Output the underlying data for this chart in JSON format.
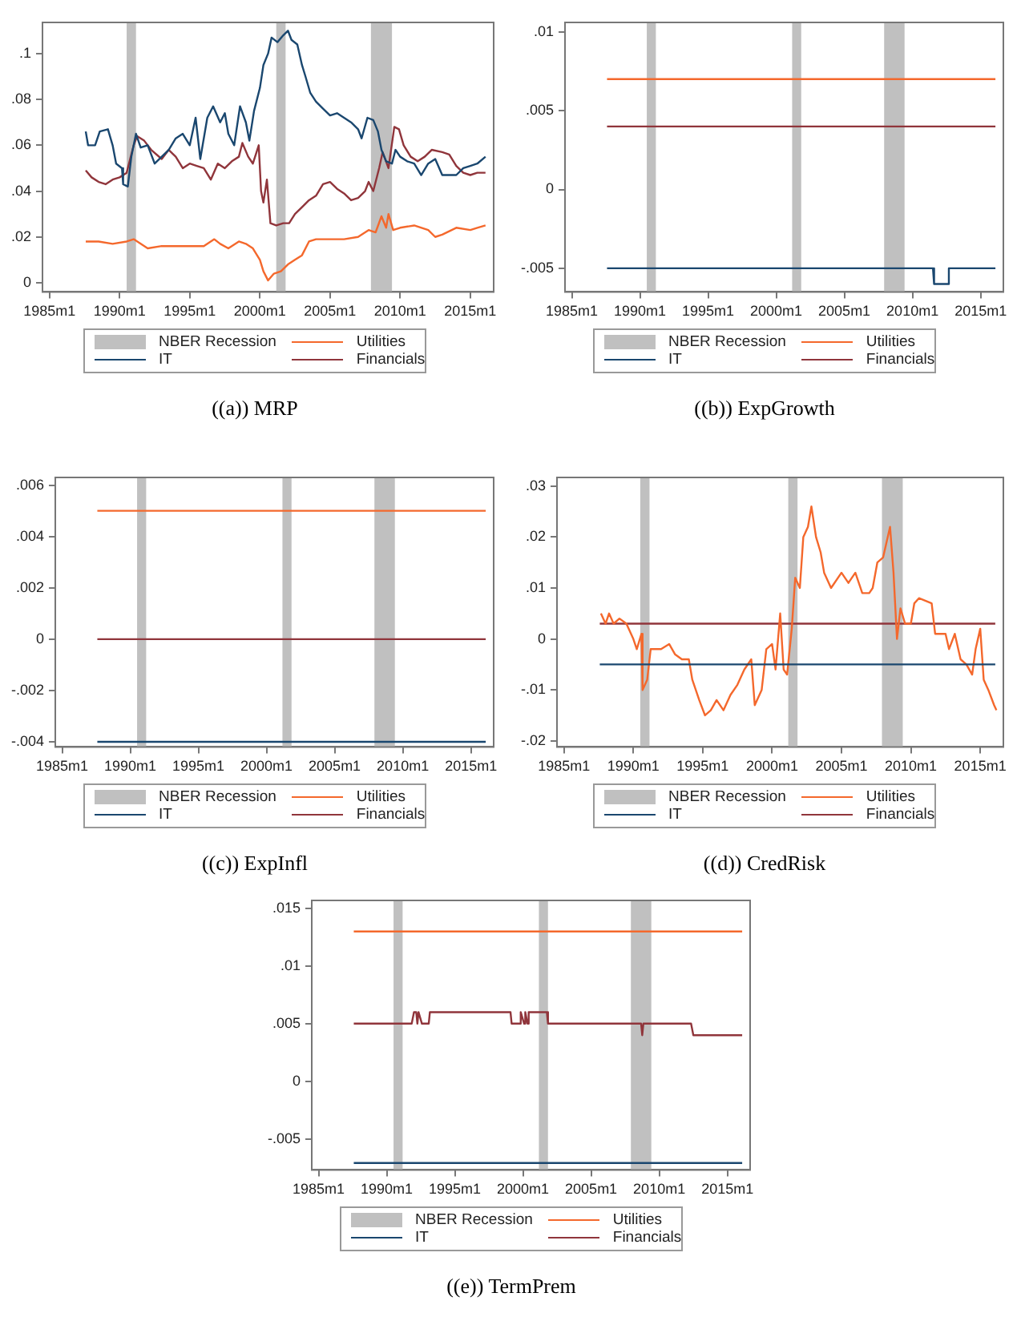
{
  "chart_data": [
    {
      "type": "line",
      "title": "((a)) MRP",
      "legend": "bottom",
      "grid": false,
      "marker": "none",
      "xlim": [
        "1984-07",
        "2016-09"
      ],
      "xticks": [
        {
          "value": "1985-01",
          "label": "1985m1"
        },
        {
          "value": "1990-01",
          "label": "1990m1"
        },
        {
          "value": "1995-01",
          "label": "1995m1"
        },
        {
          "value": "2000-01",
          "label": "2000m1"
        },
        {
          "value": "2005-01",
          "label": "2005m1"
        },
        {
          "value": "2010-01",
          "label": "2010m1"
        },
        {
          "value": "2015-01",
          "label": "2015m1"
        }
      ],
      "ylim": [
        -0.004,
        0.1136
      ],
      "yticks": [
        {
          "value": 0,
          "label": "0"
        },
        {
          "value": 0.02,
          "label": ".02"
        },
        {
          "value": 0.04,
          "label": ".04"
        },
        {
          "value": 0.06,
          "label": ".06"
        },
        {
          "value": 0.08,
          "label": ".08"
        },
        {
          "value": 0.1,
          "label": ".1"
        }
      ],
      "bands": [
        {
          "axis": "x",
          "from": "1990-07",
          "to": "1991-03",
          "label": "NBER Recession",
          "color": "#c0c0c0"
        },
        {
          "axis": "x",
          "from": "2001-03",
          "to": "2001-11",
          "color": "#c0c0c0"
        },
        {
          "axis": "x",
          "from": "2007-12",
          "to": "2009-06",
          "color": "#c0c0c0"
        }
      ],
      "series": [
        {
          "name": "IT",
          "color": "#1a476f",
          "x": [
            "1987-08",
            "1987-10",
            "1988-04",
            "1988-08",
            "1989-03",
            "1989-07",
            "1989-10",
            "1990-03",
            "1990-04",
            "1990-08",
            "1990-11",
            "1991-03",
            "1991-07",
            "1992-01",
            "1992-07",
            "1993-01",
            "1993-07",
            "1994-01",
            "1994-07",
            "1995-01",
            "1995-06",
            "1995-10",
            "1996-04",
            "1996-09",
            "1997-03",
            "1997-07",
            "1997-10",
            "1998-03",
            "1998-08",
            "1999-01",
            "1999-04",
            "1999-08",
            "2000-01",
            "2000-04",
            "2000-08",
            "2000-11",
            "2001-04",
            "2001-09",
            "2002-01",
            "2002-04",
            "2002-09",
            "2003-01",
            "2003-04",
            "2003-08",
            "2004-01",
            "2004-07",
            "2005-01",
            "2005-07",
            "2006-01",
            "2006-07",
            "2007-01",
            "2007-04",
            "2007-09",
            "2008-02",
            "2008-06",
            "2008-09",
            "2009-01",
            "2009-06",
            "2009-09",
            "2010-01",
            "2010-07",
            "2011-01",
            "2011-07",
            "2012-01",
            "2012-07",
            "2013-01",
            "2013-07",
            "2014-01",
            "2014-07",
            "2015-01",
            "2015-07",
            "2016-02"
          ],
          "values": [
            0.066,
            0.06,
            0.06,
            0.066,
            0.067,
            0.06,
            0.052,
            0.05,
            0.043,
            0.042,
            0.055,
            0.065,
            0.059,
            0.06,
            0.052,
            0.055,
            0.058,
            0.063,
            0.065,
            0.06,
            0.072,
            0.054,
            0.072,
            0.077,
            0.07,
            0.074,
            0.065,
            0.06,
            0.077,
            0.07,
            0.062,
            0.075,
            0.085,
            0.095,
            0.1,
            0.107,
            0.105,
            0.108,
            0.11,
            0.106,
            0.104,
            0.095,
            0.09,
            0.083,
            0.079,
            0.076,
            0.073,
            0.074,
            0.072,
            0.07,
            0.067,
            0.063,
            0.072,
            0.071,
            0.066,
            0.058,
            0.053,
            0.052,
            0.058,
            0.055,
            0.053,
            0.052,
            0.047,
            0.052,
            0.054,
            0.047,
            0.047,
            0.047,
            0.05,
            0.051,
            0.052,
            0.055
          ]
        },
        {
          "name": "Utilities",
          "color": "#f4682c",
          "x": [
            "1987-08",
            "1988-07",
            "1989-07",
            "1990-07",
            "1991-01",
            "1991-07",
            "1992-01",
            "1993-01",
            "1994-01",
            "1995-01",
            "1996-01",
            "1996-10",
            "1997-03",
            "1997-10",
            "1998-07",
            "1999-01",
            "1999-07",
            "2000-01",
            "2000-04",
            "2000-08",
            "2001-01",
            "2001-07",
            "2002-01",
            "2002-07",
            "2003-01",
            "2003-07",
            "2004-01",
            "2005-01",
            "2006-01",
            "2007-01",
            "2007-10",
            "2008-04",
            "2008-09",
            "2009-01",
            "2009-03",
            "2009-07",
            "2010-01",
            "2011-01",
            "2012-01",
            "2012-07",
            "2013-01",
            "2014-01",
            "2015-01",
            "2015-07",
            "2016-02"
          ],
          "values": [
            0.018,
            0.018,
            0.017,
            0.018,
            0.019,
            0.017,
            0.015,
            0.016,
            0.016,
            0.016,
            0.016,
            0.019,
            0.017,
            0.015,
            0.018,
            0.017,
            0.015,
            0.01,
            0.005,
            0.001,
            0.004,
            0.005,
            0.008,
            0.01,
            0.012,
            0.018,
            0.019,
            0.019,
            0.019,
            0.02,
            0.023,
            0.022,
            0.029,
            0.024,
            0.03,
            0.023,
            0.024,
            0.025,
            0.023,
            0.02,
            0.021,
            0.024,
            0.023,
            0.024,
            0.025
          ]
        },
        {
          "name": "Financials",
          "color": "#90353b",
          "x": [
            "1987-08",
            "1988-01",
            "1988-07",
            "1989-01",
            "1989-07",
            "1990-01",
            "1990-07",
            "1991-01",
            "1991-04",
            "1991-10",
            "1992-04",
            "1993-01",
            "1993-07",
            "1994-01",
            "1994-07",
            "1995-01",
            "1995-07",
            "1996-01",
            "1996-07",
            "1997-01",
            "1997-07",
            "1998-01",
            "1998-07",
            "1998-10",
            "1999-03",
            "1999-07",
            "1999-12",
            "2000-02",
            "2000-04",
            "2000-07",
            "2000-10",
            "2001-03",
            "2001-09",
            "2002-02",
            "2002-07",
            "2003-01",
            "2003-07",
            "2004-01",
            "2004-07",
            "2005-01",
            "2005-07",
            "2006-01",
            "2006-07",
            "2007-01",
            "2007-07",
            "2007-10",
            "2008-02",
            "2008-07",
            "2008-10",
            "2009-03",
            "2009-08",
            "2009-12",
            "2010-04",
            "2010-10",
            "2011-04",
            "2011-10",
            "2012-04",
            "2013-01",
            "2013-07",
            "2014-01",
            "2014-07",
            "2015-01",
            "2015-07",
            "2016-02"
          ],
          "values": [
            0.049,
            0.046,
            0.044,
            0.043,
            0.045,
            0.046,
            0.048,
            0.06,
            0.064,
            0.062,
            0.058,
            0.054,
            0.058,
            0.055,
            0.05,
            0.052,
            0.051,
            0.05,
            0.045,
            0.052,
            0.05,
            0.053,
            0.055,
            0.061,
            0.055,
            0.052,
            0.06,
            0.04,
            0.035,
            0.045,
            0.026,
            0.025,
            0.026,
            0.026,
            0.03,
            0.033,
            0.036,
            0.038,
            0.043,
            0.044,
            0.041,
            0.039,
            0.036,
            0.037,
            0.04,
            0.044,
            0.04,
            0.05,
            0.057,
            0.05,
            0.068,
            0.067,
            0.06,
            0.055,
            0.053,
            0.055,
            0.058,
            0.057,
            0.056,
            0.051,
            0.048,
            0.047,
            0.048,
            0.048
          ]
        }
      ]
    },
    {
      "type": "line",
      "title": "((b)) ExpGrowth",
      "legend": "bottom",
      "grid": false,
      "marker": "none",
      "xlim": [
        "1984-07",
        "2016-09"
      ],
      "xticks": [
        {
          "value": "1985-01",
          "label": "1985m1"
        },
        {
          "value": "1990-01",
          "label": "1990m1"
        },
        {
          "value": "1995-01",
          "label": "1995m1"
        },
        {
          "value": "2000-01",
          "label": "2000m1"
        },
        {
          "value": "2005-01",
          "label": "2005m1"
        },
        {
          "value": "2010-01",
          "label": "2010m1"
        },
        {
          "value": "2015-01",
          "label": "2015m1"
        }
      ],
      "ylim": [
        -0.0065,
        0.0106
      ],
      "yticks": [
        {
          "value": -0.005,
          "label": "-.005"
        },
        {
          "value": 0,
          "label": "0"
        },
        {
          "value": 0.005,
          "label": ".005"
        },
        {
          "value": 0.01,
          "label": ".01"
        }
      ],
      "bands": [
        {
          "axis": "x",
          "from": "1990-07",
          "to": "1991-03",
          "label": "NBER Recession",
          "color": "#c0c0c0"
        },
        {
          "axis": "x",
          "from": "2001-03",
          "to": "2001-11",
          "color": "#c0c0c0"
        },
        {
          "axis": "x",
          "from": "2007-12",
          "to": "2009-06",
          "color": "#c0c0c0"
        }
      ],
      "series": [
        {
          "name": "IT",
          "color": "#1a476f",
          "x": [
            "1987-08",
            "2011-07",
            "2011-08",
            "2012-08",
            "2012-09",
            "2016-02"
          ],
          "values": [
            -0.005,
            -0.005,
            -0.006,
            -0.006,
            -0.005,
            -0.005
          ]
        },
        {
          "name": "Utilities",
          "color": "#f4682c",
          "x": [
            "1987-08",
            "2016-02"
          ],
          "values": [
            0.007,
            0.007
          ]
        },
        {
          "name": "Financials",
          "color": "#90353b",
          "x": [
            "1987-08",
            "2016-02"
          ],
          "values": [
            0.004,
            0.004
          ]
        }
      ]
    },
    {
      "type": "line",
      "title": "((c)) ExpInfl",
      "legend": "bottom",
      "grid": false,
      "marker": "none",
      "xlim": [
        "1984-07",
        "2016-09"
      ],
      "xticks": [
        {
          "value": "1985-01",
          "label": "1985m1"
        },
        {
          "value": "1990-01",
          "label": "1990m1"
        },
        {
          "value": "1995-01",
          "label": "1995m1"
        },
        {
          "value": "2000-01",
          "label": "2000m1"
        },
        {
          "value": "2005-01",
          "label": "2005m1"
        },
        {
          "value": "2010-01",
          "label": "2010m1"
        },
        {
          "value": "2015-01",
          "label": "2015m1"
        }
      ],
      "ylim": [
        -0.0042,
        0.0063
      ],
      "yticks": [
        {
          "value": -0.004,
          "label": "-.004"
        },
        {
          "value": -0.002,
          "label": "-.002"
        },
        {
          "value": 0,
          "label": "0"
        },
        {
          "value": 0.002,
          "label": ".002"
        },
        {
          "value": 0.004,
          "label": ".004"
        },
        {
          "value": 0.006,
          "label": ".006"
        }
      ],
      "bands": [
        {
          "axis": "x",
          "from": "1990-07",
          "to": "1991-03",
          "label": "NBER Recession",
          "color": "#c0c0c0"
        },
        {
          "axis": "x",
          "from": "2001-03",
          "to": "2001-11",
          "color": "#c0c0c0"
        },
        {
          "axis": "x",
          "from": "2007-12",
          "to": "2009-06",
          "color": "#c0c0c0"
        }
      ],
      "series": [
        {
          "name": "IT",
          "color": "#1a476f",
          "x": [
            "1987-08",
            "2016-02"
          ],
          "values": [
            -0.004,
            -0.004
          ]
        },
        {
          "name": "Utilities",
          "color": "#f4682c",
          "x": [
            "1987-08",
            "2016-02"
          ],
          "values": [
            0.005,
            0.005
          ]
        },
        {
          "name": "Financials",
          "color": "#90353b",
          "x": [
            "1987-08",
            "2016-02"
          ],
          "values": [
            0,
            0
          ]
        }
      ]
    },
    {
      "type": "line",
      "title": "((d)) CredRisk",
      "legend": "bottom",
      "grid": false,
      "marker": "none",
      "xlim": [
        "1984-07",
        "2016-09"
      ],
      "xticks": [
        {
          "value": "1985-01",
          "label": "1985m1"
        },
        {
          "value": "1990-01",
          "label": "1990m1"
        },
        {
          "value": "1995-01",
          "label": "1995m1"
        },
        {
          "value": "2000-01",
          "label": "2000m1"
        },
        {
          "value": "2005-01",
          "label": "2005m1"
        },
        {
          "value": "2010-01",
          "label": "2010m1"
        },
        {
          "value": "2015-01",
          "label": "2015m1"
        }
      ],
      "ylim": [
        -0.0212,
        0.0317
      ],
      "yticks": [
        {
          "value": -0.02,
          "label": "-.02"
        },
        {
          "value": -0.01,
          "label": "-.01"
        },
        {
          "value": 0,
          "label": "0"
        },
        {
          "value": 0.01,
          "label": ".01"
        },
        {
          "value": 0.02,
          "label": ".02"
        },
        {
          "value": 0.03,
          "label": ".03"
        }
      ],
      "bands": [
        {
          "axis": "x",
          "from": "1990-07",
          "to": "1991-03",
          "label": "NBER Recession",
          "color": "#c0c0c0"
        },
        {
          "axis": "x",
          "from": "2001-03",
          "to": "2001-11",
          "color": "#c0c0c0"
        },
        {
          "axis": "x",
          "from": "2007-12",
          "to": "2009-06",
          "color": "#c0c0c0"
        }
      ],
      "series": [
        {
          "name": "IT",
          "color": "#1a476f",
          "x": [
            "1987-08",
            "2016-02"
          ],
          "values": [
            -0.005,
            -0.005
          ]
        },
        {
          "name": "Utilities",
          "color": "#f4682c",
          "x": [
            "1987-09",
            "1988-01",
            "1988-04",
            "1988-08",
            "1989-01",
            "1989-07",
            "1990-01",
            "1990-04",
            "1990-08",
            "1990-09",
            "1991-01",
            "1991-04",
            "1992-01",
            "1992-08",
            "1993-01",
            "1993-07",
            "1994-01",
            "1994-04",
            "1994-10",
            "1995-03",
            "1995-08",
            "1996-01",
            "1996-07",
            "1997-01",
            "1997-07",
            "1998-01",
            "1998-07",
            "1998-10",
            "1999-04",
            "1999-08",
            "2000-01",
            "2000-04",
            "2000-08",
            "2000-11",
            "2001-02",
            "2001-06",
            "2001-09",
            "2002-01",
            "2002-04",
            "2002-08",
            "2002-11",
            "2003-03",
            "2003-07",
            "2003-10",
            "2004-04",
            "2005-01",
            "2005-07",
            "2006-01",
            "2006-07",
            "2007-01",
            "2007-04",
            "2007-08",
            "2008-01",
            "2008-07",
            "2008-10",
            "2009-01",
            "2009-04",
            "2009-08",
            "2010-01",
            "2010-04",
            "2010-08",
            "2011-07",
            "2011-10",
            "2012-07",
            "2012-10",
            "2013-03",
            "2013-08",
            "2014-01",
            "2014-06",
            "2014-09",
            "2015-01",
            "2015-04",
            "2015-08",
            "2016-01",
            "2016-03"
          ],
          "values": [
            0.005,
            0.003,
            0.005,
            0.003,
            0.004,
            0.003,
            0,
            -0.002,
            0.001,
            -0.01,
            -0.008,
            -0.002,
            -0.002,
            -0.001,
            -0.003,
            -0.004,
            -0.004,
            -0.008,
            -0.012,
            -0.015,
            -0.014,
            -0.012,
            -0.014,
            -0.011,
            -0.009,
            -0.006,
            -0.004,
            -0.013,
            -0.01,
            -0.002,
            -0.001,
            -0.006,
            0.005,
            -0.006,
            -0.007,
            0.002,
            0.012,
            0.01,
            0.02,
            0.022,
            0.026,
            0.02,
            0.017,
            0.013,
            0.01,
            0.013,
            0.011,
            0.013,
            0.009,
            0.009,
            0.01,
            0.015,
            0.016,
            0.022,
            0.013,
            0,
            0.006,
            0.003,
            0.003,
            0.007,
            0.008,
            0.007,
            0.001,
            0.001,
            -0.002,
            0.001,
            -0.004,
            -0.005,
            -0.007,
            -0.002,
            0.002,
            -0.008,
            -0.01,
            -0.013,
            -0.014
          ]
        },
        {
          "name": "Financials",
          "color": "#90353b",
          "x": [
            "1987-08",
            "2016-02"
          ],
          "values": [
            0.003,
            0.003
          ]
        }
      ]
    },
    {
      "type": "line",
      "title": "((e)) TermPrem",
      "legend": "bottom",
      "grid": false,
      "marker": "none",
      "xlim": [
        "1984-07",
        "2016-09"
      ],
      "xticks": [
        {
          "value": "1985-01",
          "label": "1985m1"
        },
        {
          "value": "1990-01",
          "label": "1990m1"
        },
        {
          "value": "1995-01",
          "label": "1995m1"
        },
        {
          "value": "2000-01",
          "label": "2000m1"
        },
        {
          "value": "2005-01",
          "label": "2005m1"
        },
        {
          "value": "2010-01",
          "label": "2010m1"
        },
        {
          "value": "2015-01",
          "label": "2015m1"
        }
      ],
      "ylim": [
        -0.0077,
        0.0157
      ],
      "yticks": [
        {
          "value": -0.005,
          "label": "-.005"
        },
        {
          "value": 0,
          "label": "0"
        },
        {
          "value": 0.005,
          "label": ".005"
        },
        {
          "value": 0.01,
          "label": ".01"
        },
        {
          "value": 0.015,
          "label": ".015"
        }
      ],
      "bands": [
        {
          "axis": "x",
          "from": "1990-07",
          "to": "1991-03",
          "label": "NBER Recession",
          "color": "#c0c0c0"
        },
        {
          "axis": "x",
          "from": "2001-03",
          "to": "2001-11",
          "color": "#c0c0c0"
        },
        {
          "axis": "x",
          "from": "2007-12",
          "to": "2009-06",
          "color": "#c0c0c0"
        }
      ],
      "series": [
        {
          "name": "IT",
          "color": "#1a476f",
          "x": [
            "1987-08",
            "2016-02"
          ],
          "values": [
            -0.0071,
            -0.0071
          ]
        },
        {
          "name": "Utilities",
          "color": "#f4682c",
          "x": [
            "1987-08",
            "2016-02"
          ],
          "values": [
            0.013,
            0.013
          ]
        },
        {
          "name": "Financials",
          "color": "#90353b",
          "x": [
            "1987-08",
            "1991-11",
            "1992-01",
            "1992-03",
            "1992-04",
            "1992-05",
            "1992-08",
            "1993-02",
            "1993-03",
            "1999-02",
            "1999-03",
            "1999-10",
            "1999-11",
            "2000-02",
            "2000-03",
            "2000-05",
            "2000-06",
            "2001-10",
            "2001-11",
            "2008-09",
            "2008-10",
            "2008-11",
            "2012-05",
            "2012-07",
            "2016-02"
          ],
          "values": [
            0.005,
            0.005,
            0.006,
            0.006,
            0.005,
            0.006,
            0.005,
            0.005,
            0.006,
            0.006,
            0.005,
            0.005,
            0.006,
            0.005,
            0.006,
            0.005,
            0.006,
            0.006,
            0.005,
            0.005,
            0.004,
            0.005,
            0.005,
            0.004,
            0.004
          ]
        }
      ]
    }
  ]
}
